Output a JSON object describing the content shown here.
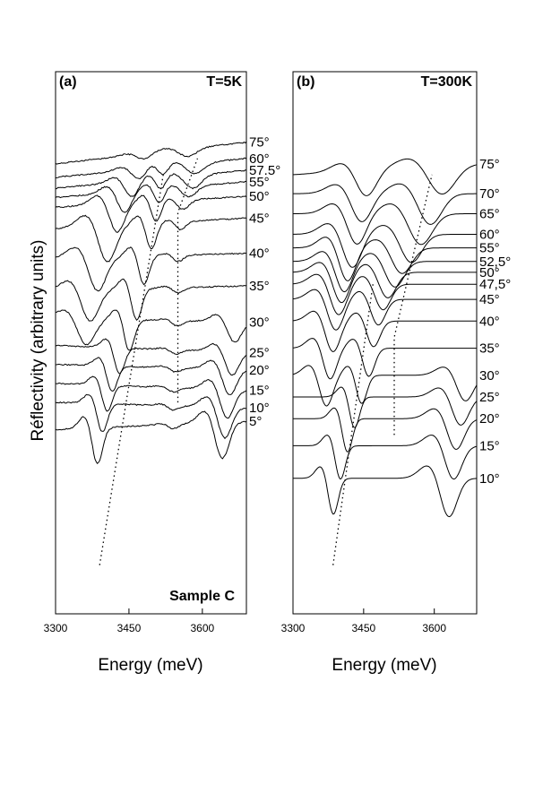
{
  "figure": {
    "ylabel": "Réflectivity (arbitrary units)"
  },
  "chart_data": [
    {
      "type": "line",
      "panel_label": "(a)",
      "temperature_label": "T=5K",
      "sample_label": "Sample C",
      "xlabel": "Energy (meV)",
      "ylabel": "Réflectivity (arbitrary units)",
      "xlim": [
        3300,
        3690
      ],
      "xticks": [
        "3300",
        "3450",
        "3600"
      ],
      "grid": false,
      "legend": "none",
      "series": [
        {
          "label": "75°",
          "y_at_start": 0.17,
          "y_at_end": 0.13,
          "dips": [
            {
              "x": 3480,
              "depth": 0.01,
              "width": 20
            },
            {
              "x": 3570,
              "depth": 0.015,
              "width": 25
            }
          ]
        },
        {
          "label": "60°",
          "y_at_start": 0.195,
          "y_at_end": 0.16,
          "dips": [
            {
              "x": 3470,
              "depth": 0.02,
              "width": 20
            },
            {
              "x": 3520,
              "depth": 0.018,
              "width": 15
            },
            {
              "x": 3585,
              "depth": 0.02,
              "width": 25
            }
          ]
        },
        {
          "label": "57.5°",
          "y_at_start": 0.215,
          "y_at_end": 0.182,
          "dips": [
            {
              "x": 3455,
              "depth": 0.03,
              "width": 20
            },
            {
              "x": 3515,
              "depth": 0.025,
              "width": 15
            },
            {
              "x": 3580,
              "depth": 0.025,
              "width": 25
            }
          ]
        },
        {
          "label": "55°",
          "y_at_start": 0.232,
          "y_at_end": 0.203,
          "dips": [
            {
              "x": 3440,
              "depth": 0.04,
              "width": 20
            },
            {
              "x": 3512,
              "depth": 0.03,
              "width": 15
            },
            {
              "x": 3572,
              "depth": 0.02,
              "width": 22
            }
          ]
        },
        {
          "label": "50°",
          "y_at_start": 0.25,
          "y_at_end": 0.23,
          "dips": [
            {
              "x": 3425,
              "depth": 0.055,
              "width": 22
            },
            {
              "x": 3505,
              "depth": 0.04,
              "width": 15
            },
            {
              "x": 3560,
              "depth": 0.018,
              "width": 18
            }
          ]
        },
        {
          "label": "45°",
          "y_at_start": 0.29,
          "y_at_end": 0.27,
          "dips": [
            {
              "x": 3405,
              "depth": 0.07,
              "width": 25
            },
            {
              "x": 3495,
              "depth": 0.05,
              "width": 15
            },
            {
              "x": 3555,
              "depth": 0.015,
              "width": 15
            }
          ]
        },
        {
          "label": "40°",
          "y_at_start": 0.345,
          "y_at_end": 0.335,
          "dips": [
            {
              "x": 3385,
              "depth": 0.065,
              "width": 25
            },
            {
              "x": 3480,
              "depth": 0.055,
              "width": 15
            },
            {
              "x": 3550,
              "depth": 0.012,
              "width": 15
            }
          ]
        },
        {
          "label": "35°",
          "y_at_start": 0.405,
          "y_at_end": 0.395,
          "dips": [
            {
              "x": 3370,
              "depth": 0.06,
              "width": 25
            },
            {
              "x": 3465,
              "depth": 0.06,
              "width": 15
            },
            {
              "x": 3550,
              "depth": 0.01,
              "width": 15
            }
          ]
        },
        {
          "label": "30°",
          "y_at_start": 0.455,
          "y_at_end": 0.462,
          "dips": [
            {
              "x": 3362,
              "depth": 0.05,
              "width": 25
            },
            {
              "x": 3450,
              "depth": 0.06,
              "width": 15
            },
            {
              "x": 3548,
              "depth": 0.01,
              "width": 15
            },
            {
              "x": 3665,
              "depth": 0.04,
              "width": 20
            }
          ]
        },
        {
          "label": "25°",
          "y_at_start": 0.505,
          "y_at_end": 0.518,
          "dips": [
            {
              "x": 3430,
              "depth": 0.05,
              "width": 15
            },
            {
              "x": 3545,
              "depth": 0.008,
              "width": 15
            },
            {
              "x": 3660,
              "depth": 0.045,
              "width": 20
            }
          ]
        },
        {
          "label": "20°",
          "y_at_start": 0.54,
          "y_at_end": 0.55,
          "dips": [
            {
              "x": 3415,
              "depth": 0.05,
              "width": 15
            },
            {
              "x": 3545,
              "depth": 0.008,
              "width": 15
            },
            {
              "x": 3655,
              "depth": 0.05,
              "width": 20
            }
          ]
        },
        {
          "label": "15°",
          "y_at_start": 0.575,
          "y_at_end": 0.588,
          "dips": [
            {
              "x": 3405,
              "depth": 0.05,
              "width": 15
            },
            {
              "x": 3540,
              "depth": 0.008,
              "width": 15
            },
            {
              "x": 3650,
              "depth": 0.055,
              "width": 20
            }
          ]
        },
        {
          "label": "10°",
          "y_at_start": 0.61,
          "y_at_end": 0.62,
          "dips": [
            {
              "x": 3395,
              "depth": 0.055,
              "width": 15
            },
            {
              "x": 3540,
              "depth": 0.008,
              "width": 15
            },
            {
              "x": 3645,
              "depth": 0.06,
              "width": 20
            }
          ]
        },
        {
          "label": "5°",
          "y_at_start": 0.66,
          "y_at_end": 0.645,
          "dips": [
            {
              "x": 3385,
              "depth": 0.07,
              "width": 15
            },
            {
              "x": 3540,
              "depth": 0.008,
              "width": 15
            },
            {
              "x": 3640,
              "depth": 0.07,
              "width": 20
            }
          ]
        }
      ],
      "guide_lines": [
        [
          [
            3390,
            0.91
          ],
          [
            3520,
            0.19
          ]
        ],
        [
          [
            3550,
            0.61
          ],
          [
            3550,
            0.26
          ],
          [
            3590,
            0.16
          ]
        ]
      ]
    },
    {
      "type": "line",
      "panel_label": "(b)",
      "temperature_label": "T=300K",
      "xlabel": "Energy (meV)",
      "ylabel": "Réflectivity (arbitrary units)",
      "xlim": [
        3300,
        3690
      ],
      "xticks": [
        "3300",
        "3450",
        "3600"
      ],
      "grid": false,
      "legend": "none",
      "series": [
        {
          "label": "75°",
          "y_at_start": 0.19,
          "y_at_end": 0.17,
          "dips": [
            {
              "x": 3455,
              "depth": 0.05,
              "width": 30
            },
            {
              "x": 3615,
              "depth": 0.055,
              "width": 40
            }
          ]
        },
        {
          "label": "70°",
          "y_at_start": 0.225,
          "y_at_end": 0.225,
          "dips": [
            {
              "x": 3445,
              "depth": 0.055,
              "width": 30
            },
            {
              "x": 3590,
              "depth": 0.06,
              "width": 35
            }
          ]
        },
        {
          "label": "65°",
          "y_at_start": 0.262,
          "y_at_end": 0.262,
          "dips": [
            {
              "x": 3435,
              "depth": 0.06,
              "width": 28
            },
            {
              "x": 3570,
              "depth": 0.06,
              "width": 35
            }
          ]
        },
        {
          "label": "60°",
          "y_at_start": 0.3,
          "y_at_end": 0.3,
          "dips": [
            {
              "x": 3425,
              "depth": 0.065,
              "width": 28
            },
            {
              "x": 3550,
              "depth": 0.055,
              "width": 32
            }
          ]
        },
        {
          "label": "55°",
          "y_at_start": 0.325,
          "y_at_end": 0.325,
          "dips": [
            {
              "x": 3415,
              "depth": 0.065,
              "width": 25
            },
            {
              "x": 3530,
              "depth": 0.05,
              "width": 30
            }
          ]
        },
        {
          "label": "52,5°",
          "y_at_start": 0.35,
          "y_at_end": 0.35,
          "dips": [
            {
              "x": 3408,
              "depth": 0.06,
              "width": 25
            },
            {
              "x": 3515,
              "depth": 0.05,
              "width": 28
            }
          ]
        },
        {
          "label": "50°",
          "y_at_start": 0.37,
          "y_at_end": 0.37,
          "dips": [
            {
              "x": 3402,
              "depth": 0.06,
              "width": 25
            },
            {
              "x": 3500,
              "depth": 0.05,
              "width": 26
            }
          ]
        },
        {
          "label": "47,5°",
          "y_at_start": 0.392,
          "y_at_end": 0.392,
          "dips": [
            {
              "x": 3396,
              "depth": 0.06,
              "width": 25
            },
            {
              "x": 3490,
              "depth": 0.05,
              "width": 24
            }
          ]
        },
        {
          "label": "45°",
          "y_at_start": 0.42,
          "y_at_end": 0.42,
          "dips": [
            {
              "x": 3390,
              "depth": 0.06,
              "width": 24
            },
            {
              "x": 3480,
              "depth": 0.05,
              "width": 22
            }
          ]
        },
        {
          "label": "40°",
          "y_at_start": 0.46,
          "y_at_end": 0.46,
          "dips": [
            {
              "x": 3384,
              "depth": 0.06,
              "width": 22
            },
            {
              "x": 3470,
              "depth": 0.05,
              "width": 20
            }
          ]
        },
        {
          "label": "35°",
          "y_at_start": 0.51,
          "y_at_end": 0.51,
          "dips": [
            {
              "x": 3378,
              "depth": 0.06,
              "width": 20
            },
            {
              "x": 3460,
              "depth": 0.055,
              "width": 18
            }
          ]
        },
        {
          "label": "30°",
          "y_at_start": 0.56,
          "y_at_end": 0.56,
          "dips": [
            {
              "x": 3370,
              "depth": 0.06,
              "width": 20
            },
            {
              "x": 3445,
              "depth": 0.055,
              "width": 16
            },
            {
              "x": 3665,
              "depth": 0.05,
              "width": 25
            }
          ]
        },
        {
          "label": "25°",
          "y_at_start": 0.6,
          "y_at_end": 0.6,
          "dips": [
            {
              "x": 3430,
              "depth": 0.06,
              "width": 15
            },
            {
              "x": 3655,
              "depth": 0.055,
              "width": 25
            }
          ]
        },
        {
          "label": "20°",
          "y_at_start": 0.64,
          "y_at_end": 0.64,
          "dips": [
            {
              "x": 3415,
              "depth": 0.065,
              "width": 15
            },
            {
              "x": 3645,
              "depth": 0.06,
              "width": 25
            }
          ]
        },
        {
          "label": "15°",
          "y_at_start": 0.69,
          "y_at_end": 0.69,
          "dips": [
            {
              "x": 3400,
              "depth": 0.065,
              "width": 15
            },
            {
              "x": 3640,
              "depth": 0.065,
              "width": 25
            }
          ]
        },
        {
          "label": "10°",
          "y_at_start": 0.75,
          "y_at_end": 0.75,
          "dips": [
            {
              "x": 3385,
              "depth": 0.07,
              "width": 15
            },
            {
              "x": 3630,
              "depth": 0.075,
              "width": 25
            }
          ]
        }
      ],
      "guide_lines": [
        [
          [
            3385,
            0.91
          ],
          [
            3470,
            0.39
          ]
        ],
        [
          [
            3515,
            0.67
          ],
          [
            3515,
            0.49
          ],
          [
            3595,
            0.19
          ]
        ]
      ]
    }
  ]
}
